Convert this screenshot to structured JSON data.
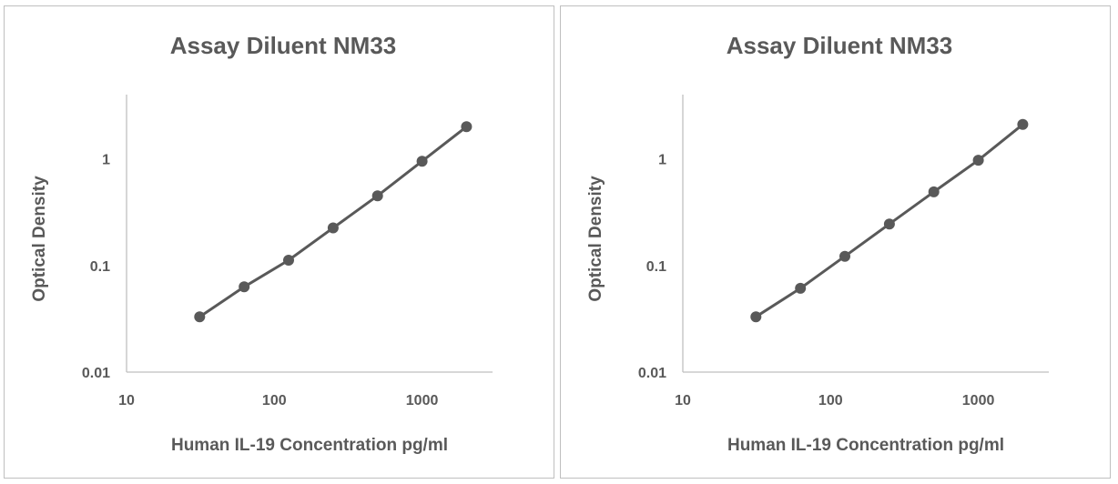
{
  "chart_data": [
    {
      "type": "line",
      "title": "Assay Diluent NM33",
      "xlabel": "Human IL-19 Concentration pg/ml",
      "ylabel": "Optical Density",
      "xscale": "log",
      "yscale": "log",
      "xlim": [
        10,
        3000
      ],
      "ylim": [
        0.01,
        4
      ],
      "x_ticks": [
        "10",
        "100",
        "1000"
      ],
      "y_ticks": [
        "0.01",
        "0.1",
        "1"
      ],
      "grid": false,
      "legend": "none",
      "series": [
        {
          "x": [
            31.25,
            62.5,
            125,
            250,
            500,
            1000,
            2000
          ],
          "y": [
            0.033,
            0.063,
            0.112,
            0.225,
            0.45,
            0.95,
            2.0
          ],
          "color": "#595959",
          "marker": "circle"
        }
      ]
    },
    {
      "type": "line",
      "title": "Assay Diluent NM33",
      "xlabel": "Human IL-19 Concentration pg/ml",
      "ylabel": "Optical Density",
      "xscale": "log",
      "yscale": "log",
      "xlim": [
        10,
        3000
      ],
      "ylim": [
        0.01,
        4
      ],
      "x_ticks": [
        "10",
        "100",
        "1000"
      ],
      "y_ticks": [
        "0.01",
        "0.1",
        "1"
      ],
      "grid": false,
      "legend": "none",
      "series": [
        {
          "x": [
            31.25,
            62.5,
            125,
            250,
            500,
            1000,
            2000
          ],
          "y": [
            0.033,
            0.061,
            0.122,
            0.245,
            0.49,
            0.97,
            2.1
          ],
          "color": "#595959",
          "marker": "circle"
        }
      ]
    }
  ]
}
